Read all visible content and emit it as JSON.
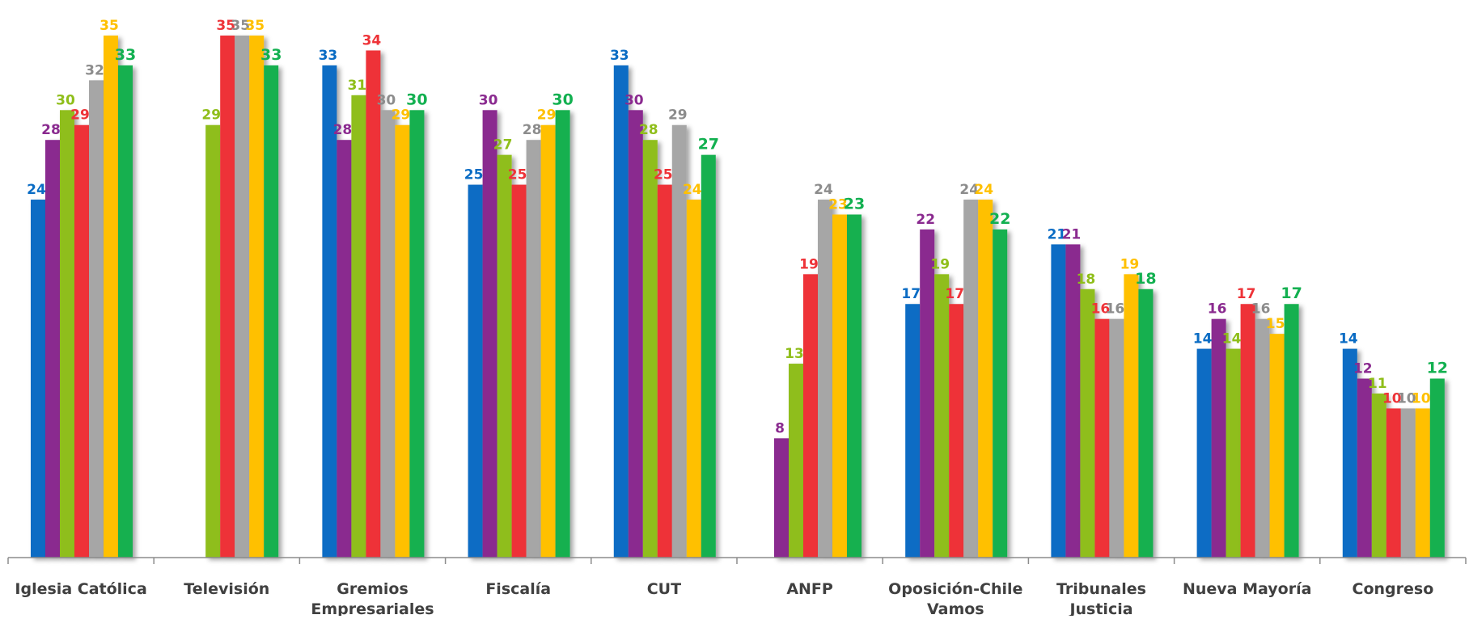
{
  "chart_data": {
    "type": "bar",
    "title": "",
    "xlabel": "",
    "ylabel": "",
    "ylim": [
      0,
      35
    ],
    "grid": false,
    "legend": "none",
    "categories": [
      [
        "Iglesia Católica"
      ],
      [
        "Televisión"
      ],
      [
        "Gremios",
        "Empresariales"
      ],
      [
        "Fiscalía"
      ],
      [
        "CUT"
      ],
      [
        "ANFP"
      ],
      [
        "Oposición-Chile",
        "Vamos"
      ],
      [
        "Tribunales",
        "Justicia"
      ],
      [
        "Nueva Mayoría"
      ],
      [
        "Congreso"
      ]
    ],
    "series": [
      {
        "color": "#0a6cc4",
        "values": [
          24,
          null,
          33,
          25,
          33,
          null,
          17,
          21,
          14,
          14
        ]
      },
      {
        "color": "#8a2a8f",
        "values": [
          28,
          null,
          28,
          30,
          30,
          8,
          22,
          21,
          16,
          12
        ]
      },
      {
        "color": "#8fbe1a",
        "values": [
          30,
          29,
          31,
          27,
          28,
          13,
          19,
          18,
          14,
          11
        ]
      },
      {
        "color": "#ee3338",
        "values": [
          29,
          35,
          34,
          25,
          25,
          19,
          17,
          16,
          17,
          10
        ]
      },
      {
        "color": "#a6a6a6",
        "values": [
          32,
          35,
          30,
          28,
          29,
          24,
          24,
          16,
          16,
          10
        ]
      },
      {
        "color": "#ffc000",
        "values": [
          35,
          35,
          29,
          29,
          24,
          23,
          24,
          19,
          15,
          10
        ]
      },
      {
        "color": "#12b050",
        "values": [
          33,
          33,
          30,
          30,
          27,
          23,
          22,
          18,
          17,
          12
        ]
      }
    ]
  }
}
